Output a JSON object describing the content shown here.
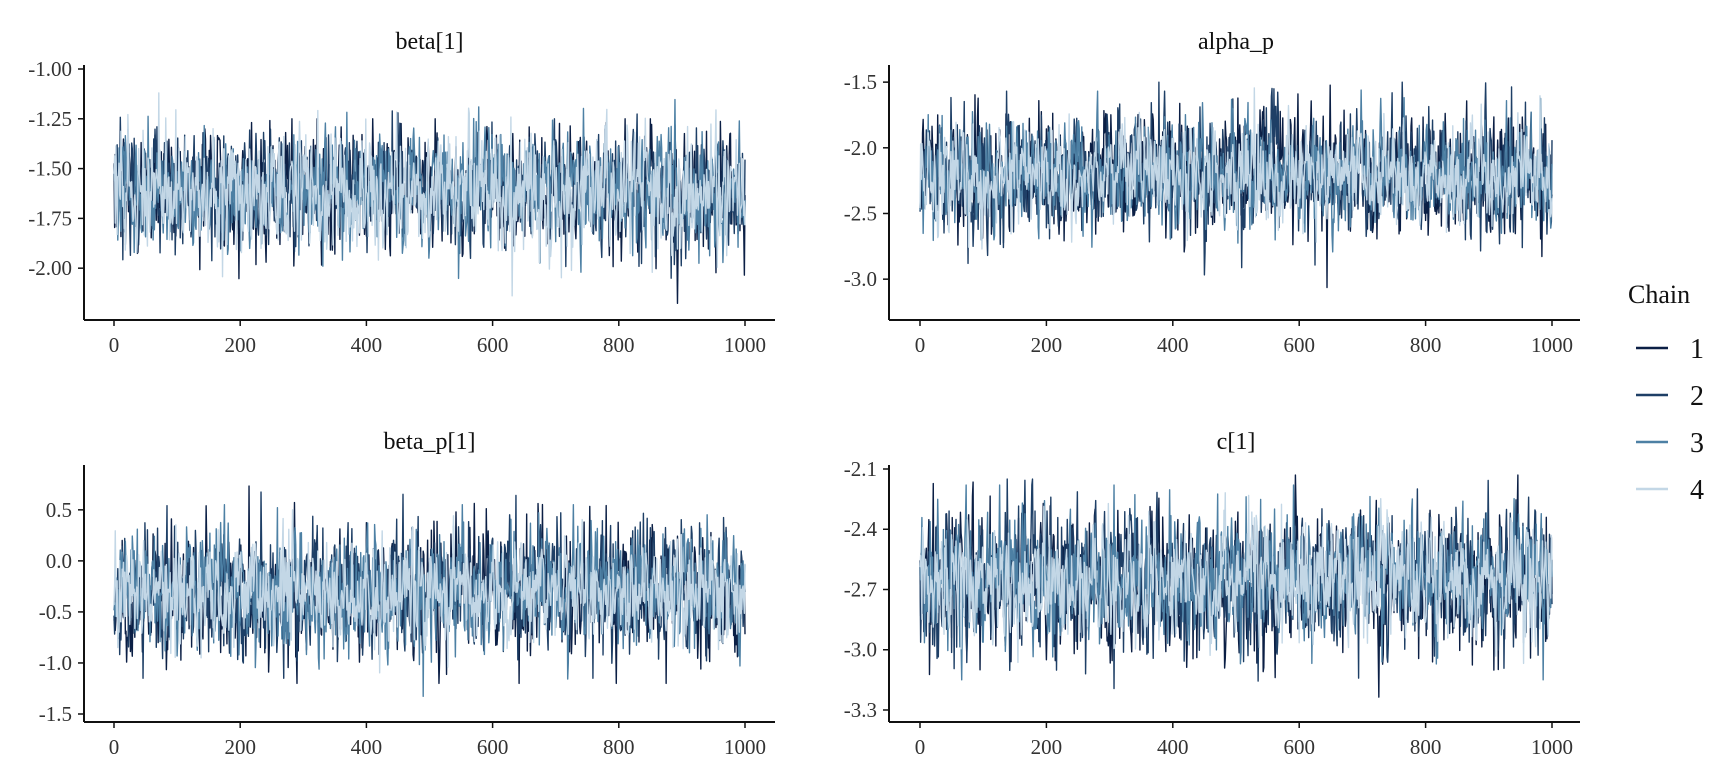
{
  "legend": {
    "title": "Chain",
    "entries": [
      {
        "label": "1",
        "color": "#0b1f45"
      },
      {
        "label": "2",
        "color": "#1e3f66"
      },
      {
        "label": "3",
        "color": "#4d80a4"
      },
      {
        "label": "4",
        "color": "#c3d7e6"
      }
    ]
  },
  "chart_data": [
    {
      "type": "line",
      "title": "beta[1]",
      "xlabel": "",
      "ylabel": "",
      "xlim": [
        0,
        1000
      ],
      "ylim": [
        -2.22,
        -1.0
      ],
      "x_ticks": [
        0,
        200,
        400,
        600,
        800,
        1000
      ],
      "x_tick_labels": [
        "0",
        "200",
        "400",
        "600",
        "800",
        "1000"
      ],
      "y_ticks": [
        -2.0,
        -1.75,
        -1.5,
        -1.25,
        -1.0
      ],
      "y_tick_labels": [
        "-2.00",
        "-1.75",
        "-1.50",
        "-1.25",
        "-1.00"
      ],
      "n_iterations": 1000,
      "series": [
        {
          "chain": "1",
          "mean": -1.6,
          "sd": 0.14,
          "min": -2.2,
          "max": -1.25
        },
        {
          "chain": "2",
          "mean": -1.6,
          "sd": 0.14,
          "min": -2.15,
          "max": -1.2
        },
        {
          "chain": "3",
          "mean": -1.6,
          "sd": 0.14,
          "min": -2.12,
          "max": -1.02
        },
        {
          "chain": "4",
          "mean": -1.62,
          "sd": 0.14,
          "min": -2.18,
          "max": -1.12
        }
      ]
    },
    {
      "type": "line",
      "title": "alpha_p",
      "xlabel": "",
      "ylabel": "",
      "xlim": [
        0,
        1000
      ],
      "ylim": [
        -3.25,
        -1.4
      ],
      "x_ticks": [
        0,
        200,
        400,
        600,
        800,
        1000
      ],
      "x_tick_labels": [
        "0",
        "200",
        "400",
        "600",
        "800",
        "1000"
      ],
      "y_ticks": [
        -3.0,
        -2.5,
        -2.0,
        -1.5
      ],
      "y_tick_labels": [
        "-3.0",
        "-2.5",
        "-2.0",
        "-1.5"
      ],
      "n_iterations": 1000,
      "series": [
        {
          "chain": "1",
          "mean": -2.2,
          "sd": 0.22,
          "min": -3.15,
          "max": -1.45
        },
        {
          "chain": "2",
          "mean": -2.2,
          "sd": 0.22,
          "min": -3.05,
          "max": -1.5
        },
        {
          "chain": "3",
          "mean": -2.2,
          "sd": 0.2,
          "min": -2.95,
          "max": -1.48
        },
        {
          "chain": "4",
          "mean": -2.2,
          "sd": 0.18,
          "min": -2.85,
          "max": -1.48
        }
      ]
    },
    {
      "type": "line",
      "title": "beta_p[1]",
      "xlabel": "",
      "ylabel": "",
      "xlim": [
        0,
        1000
      ],
      "ylim": [
        -1.5,
        0.9
      ],
      "x_ticks": [
        0,
        200,
        400,
        600,
        800,
        1000
      ],
      "x_tick_labels": [
        "0",
        "200",
        "400",
        "600",
        "800",
        "1000"
      ],
      "y_ticks": [
        -1.5,
        -1.0,
        -0.5,
        0.0,
        0.5
      ],
      "y_tick_labels": [
        "-1.5",
        "-1.0",
        "-0.5",
        "0.0",
        "0.5"
      ],
      "n_iterations": 1000,
      "series": [
        {
          "chain": "1",
          "mean": -0.3,
          "sd": 0.3,
          "min": -1.2,
          "max": 0.85
        },
        {
          "chain": "2",
          "mean": -0.3,
          "sd": 0.3,
          "min": -1.15,
          "max": 0.7
        },
        {
          "chain": "3",
          "mean": -0.3,
          "sd": 0.28,
          "min": -1.42,
          "max": 0.55
        },
        {
          "chain": "4",
          "mean": -0.3,
          "sd": 0.25,
          "min": -1.25,
          "max": 0.5
        }
      ]
    },
    {
      "type": "line",
      "title": "c[1]",
      "xlabel": "",
      "ylabel": "",
      "xlim": [
        0,
        1000
      ],
      "ylim": [
        -3.32,
        -2.1
      ],
      "x_ticks": [
        0,
        200,
        400,
        600,
        800,
        1000
      ],
      "x_tick_labels": [
        "0",
        "200",
        "400",
        "600",
        "800",
        "1000"
      ],
      "y_ticks": [
        -3.3,
        -3.0,
        -2.7,
        -2.4,
        -2.1
      ],
      "y_tick_labels": [
        "-3.3",
        "-3.0",
        "-2.7",
        "-2.4",
        "-2.1"
      ],
      "n_iterations": 1000,
      "series": [
        {
          "chain": "1",
          "mean": -2.65,
          "sd": 0.17,
          "min": -3.27,
          "max": -2.13
        },
        {
          "chain": "2",
          "mean": -2.65,
          "sd": 0.17,
          "min": -3.2,
          "max": -2.15
        },
        {
          "chain": "3",
          "mean": -2.65,
          "sd": 0.16,
          "min": -3.15,
          "max": -2.18
        },
        {
          "chain": "4",
          "mean": -2.65,
          "sd": 0.14,
          "min": -3.28,
          "max": -2.15
        }
      ]
    }
  ]
}
